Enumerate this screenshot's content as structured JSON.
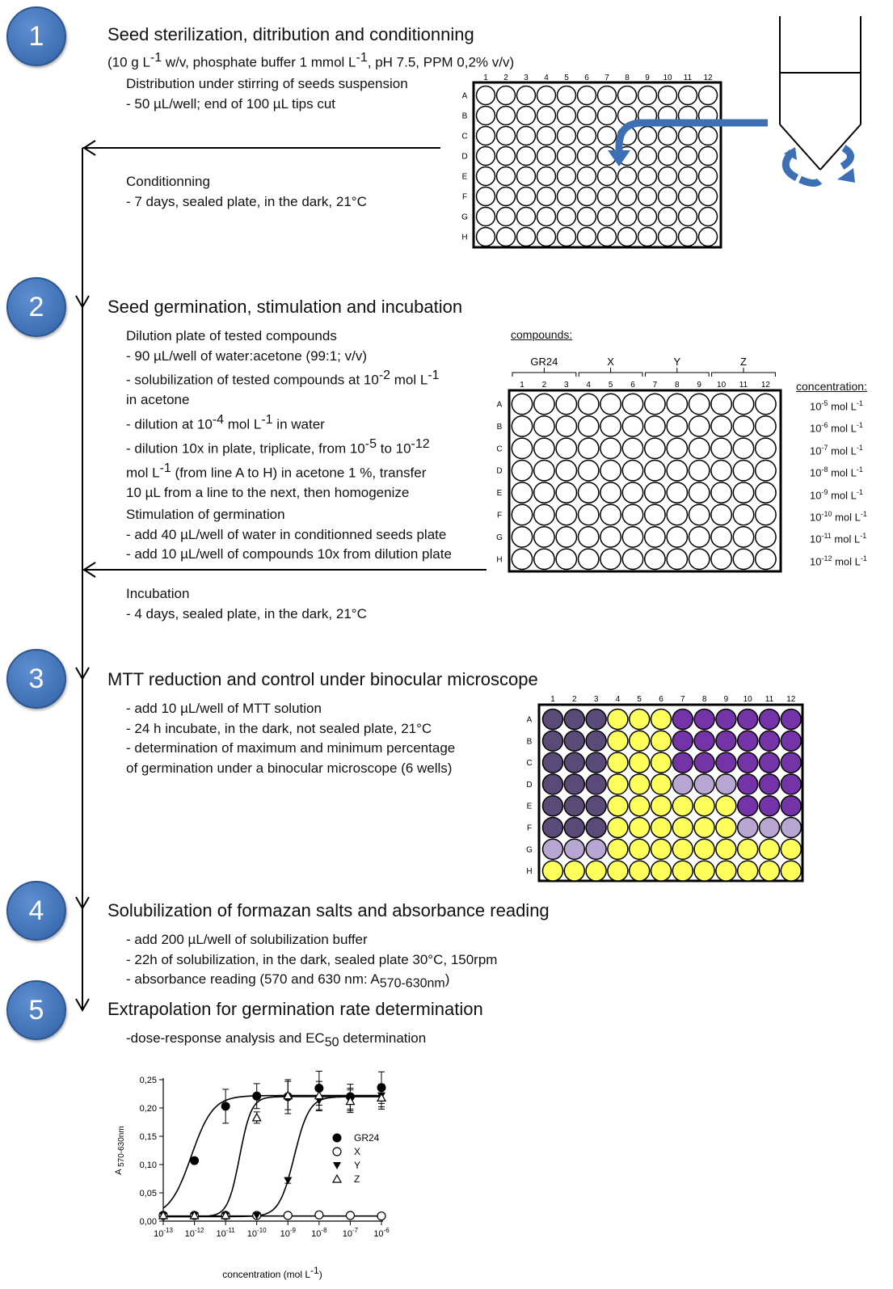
{
  "colors": {
    "badge": "#3e6fb4",
    "dark_purple": "#5a4a78",
    "purple": "#7433a6",
    "light_purple": "#b8a6d2",
    "yellow": "#ffff5c",
    "arrow_blue": "#3c6fb3"
  },
  "step1": {
    "number": "1",
    "title": "Seed sterilization, ditribution and conditionning",
    "subtitle_pre": "(10 g L",
    "subtitle_sup1": "-1",
    "subtitle_mid": " w/v, phosphate buffer 1 mmol L",
    "subtitle_sup2": "-1",
    "subtitle_post": ", pH 7.5, PPM 0,2% v/v)",
    "distribution_heading": "Distribution under stirring of seeds suspension",
    "distribution_line": "- 50 µL/well; end of 100 µL tips cut",
    "conditioning_heading": "Conditionning",
    "conditioning_line": "- 7 days, sealed plate, in the dark, 21°C"
  },
  "step2": {
    "number": "2",
    "title": "Seed germination, stimulation and incubation",
    "dilution_heading": "Dilution plate of tested compounds",
    "dilution_l1": "- 90 µL/well of water:acetone (99:1; v/v)",
    "dilution_l2_pre": "- solubilization of tested compounds at 10",
    "dilution_l2_sup": "-2",
    "dilution_l2_mid": " mol L",
    "dilution_l2_sup2": "-1",
    "dilution_l3": "in acetone",
    "dilution_l4_pre": "- dilution at 10",
    "dilution_l4_sup": "-4",
    "dilution_l4_mid": " mol L",
    "dilution_l4_sup2": "-1",
    "dilution_l4_post": " in water",
    "dilution_l5_pre": "- dilution 10x in plate, triplicate, from 10",
    "dilution_l5_sup": "-5",
    "dilution_l5_mid": " to 10",
    "dilution_l5_sup2": "-12",
    "dilution_l6_pre": "mol L",
    "dilution_l6_sup": "-1",
    "dilution_l6_post": " (from line A to H) in acetone 1 %, transfer",
    "dilution_l7": "10 µL from a line to the next, then homogenize",
    "stim_heading": "Stimulation of germination",
    "stim_l1": "- add 40 µL/well of water in conditionned seeds plate",
    "stim_l2": "- add 10 µL/well of compounds 10x from dilution plate",
    "incub_heading": "Incubation",
    "incub_l1": "- 4 days, sealed plate, in the dark, 21°C",
    "compounds_label": "compounds:",
    "compound_groups": [
      "GR24",
      "X",
      "Y",
      "Z"
    ],
    "concentration_label": "concentration:",
    "concentrations": [
      {
        "base": "10",
        "exp": "-5",
        "unit": "mol L",
        "uexp": "-1"
      },
      {
        "base": "10",
        "exp": "-6",
        "unit": "mol L",
        "uexp": "-1"
      },
      {
        "base": "10",
        "exp": "-7",
        "unit": "mol L",
        "uexp": "-1"
      },
      {
        "base": "10",
        "exp": "-8",
        "unit": "mol L",
        "uexp": "-1"
      },
      {
        "base": "10",
        "exp": "-9",
        "unit": "mol L",
        "uexp": "-1"
      },
      {
        "base": "10",
        "exp": "-10",
        "unit": "mol L",
        "uexp": "-1"
      },
      {
        "base": "10",
        "exp": "-11",
        "unit": "mol L",
        "uexp": "-1"
      },
      {
        "base": "10",
        "exp": "-12",
        "unit": "mol L",
        "uexp": "-1"
      }
    ]
  },
  "step3": {
    "number": "3",
    "title": "MTT reduction and control under  binocular microscope",
    "l1": "- add 10 µL/well of MTT solution",
    "l2": "- 24 h incubate, in the dark, not sealed plate, 21°C",
    "l3": "- determination of maximum and minimum percentage",
    "l4": "of germination under a binocular microscope (6 wells)",
    "well_colors": [
      "DDDYYYPPPPPP",
      "DDDYYYPPPPPP",
      "DDDYYYPPPPPP",
      "DDDYYYLLLPPP",
      "DDDYYYYYYPPP",
      "DDDYYYYYYLLL",
      "LLLYYYYYYYYY",
      "YYYYYYYYYYYY"
    ]
  },
  "step4": {
    "number": "4",
    "title": "Solubilization of formazan salts and absorbance reading",
    "l1": "- add 200 µL/well of solubilization buffer",
    "l2": "- 22h of solubilization, in the dark, sealed plate 30°C, 150rpm",
    "l3_pre": "- absorbance reading (570 and 630 nm: A",
    "l3_sub": "570-630nm",
    "l3_post": ")"
  },
  "step5": {
    "number": "5",
    "title": "Extrapolation for germination rate determination",
    "l1_pre": "-dose-response analysis and EC",
    "l1_sub": "50",
    "l1_post": " determination"
  },
  "plate": {
    "columns": [
      "1",
      "2",
      "3",
      "4",
      "5",
      "6",
      "7",
      "8",
      "9",
      "10",
      "11",
      "12"
    ],
    "rows": [
      "A",
      "B",
      "C",
      "D",
      "E",
      "F",
      "G",
      "H"
    ]
  },
  "chart_data": {
    "type": "scatter",
    "xscale": "log",
    "x": [
      1e-13,
      1e-12,
      1e-11,
      1e-10,
      1e-09,
      1e-08,
      1e-07,
      1e-06
    ],
    "xtick_labels": [
      {
        "base": "10",
        "exp": "-13"
      },
      {
        "base": "10",
        "exp": "-12"
      },
      {
        "base": "10",
        "exp": "-11"
      },
      {
        "base": "10",
        "exp": "-10"
      },
      {
        "base": "10",
        "exp": "-9"
      },
      {
        "base": "10",
        "exp": "-8"
      },
      {
        "base": "10",
        "exp": "-7"
      },
      {
        "base": "10",
        "exp": "-6"
      }
    ],
    "yticks": [
      "0,00",
      "0,05",
      "0,10",
      "0,15",
      "0,20",
      "0,25"
    ],
    "ylim": [
      0,
      0.25
    ],
    "ylabel_pre": "A ",
    "ylabel_sub": "570-630nm",
    "xlabel_pre": "concentration (mol L",
    "xlabel_sup": "-1",
    "xlabel_post": ")",
    "series": [
      {
        "name": "GR24",
        "marker": "filled-circle",
        "values": [
          0.01,
          0.107,
          0.203,
          0.221,
          0.22,
          0.235,
          0.22,
          0.236
        ],
        "errors": [
          0.005,
          0.005,
          0.03,
          0.022,
          0.03,
          0.03,
          0.022,
          0.028
        ],
        "fit": {
          "top": 0.222,
          "bottom": 0.008,
          "logEC50": -12.1,
          "hill": 1.25
        }
      },
      {
        "name": "X",
        "marker": "open-circle",
        "values": [
          0.01,
          0.01,
          0.01,
          0.01,
          0.01,
          0.011,
          0.01,
          0.009
        ],
        "errors": [
          0,
          0,
          0,
          0,
          0,
          0,
          0,
          0
        ],
        "fit": {
          "top": 0.009,
          "bottom": 0.009,
          "logEC50": -10,
          "hill": 1
        }
      },
      {
        "name": "Y",
        "marker": "filled-triangle-down",
        "values": [
          0.01,
          0.01,
          0.01,
          0.01,
          0.072,
          0.213,
          0.215,
          0.222
        ],
        "errors": [
          0,
          0,
          0,
          0,
          0.005,
          0.018,
          0.02,
          0.02
        ],
        "fit": {
          "top": 0.22,
          "bottom": 0.008,
          "logEC50": -8.8,
          "hill": 1.8
        }
      },
      {
        "name": "Z",
        "marker": "open-triangle-up",
        "values": [
          0.01,
          0.01,
          0.01,
          0.183,
          0.222,
          0.222,
          0.212,
          0.218
        ],
        "errors": [
          0,
          0,
          0,
          0.01,
          0.025,
          0.025,
          0.02,
          0.02
        ],
        "fit": {
          "top": 0.22,
          "bottom": 0.008,
          "logEC50": -10.55,
          "hill": 2.3
        }
      }
    ]
  }
}
